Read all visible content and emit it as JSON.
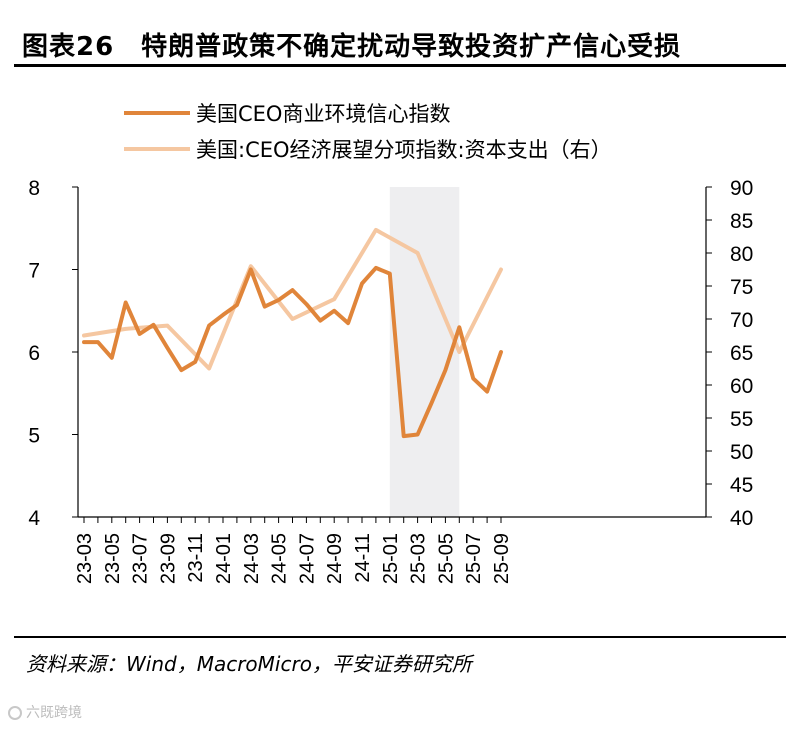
{
  "header": {
    "title": "图表26　特朗普政策不确定扰动导致投资扩产信心受损"
  },
  "footer": {
    "source": "资料来源：Wind，MacroMicro，平安证券研究所"
  },
  "watermark": {
    "text": "六既跨境",
    "icon": "ring-logo-icon"
  },
  "colors": {
    "series1": "#E0853A",
    "series2": "#F5C7A1",
    "shade": "#EEEEF0",
    "axis": "#000000"
  },
  "chart_data": {
    "type": "line",
    "title": "图表26　特朗普政策不确定扰动导致投资扩产信心受损",
    "xlabel": "",
    "ylabel": "",
    "ylim": [
      4,
      8
    ],
    "y2lim": [
      40,
      90
    ],
    "y_ticks": [
      "4",
      "5",
      "6",
      "7",
      "8"
    ],
    "y2_ticks": [
      "40",
      "45",
      "50",
      "55",
      "60",
      "65",
      "70",
      "75",
      "80",
      "85",
      "90"
    ],
    "categories": [
      "23-03",
      "23-05",
      "23-07",
      "23-09",
      "23-11",
      "24-01",
      "24-03",
      "24-05",
      "24-07",
      "24-09",
      "24-11",
      "25-01",
      "25-03",
      "25-05",
      "25-07",
      "25-09"
    ],
    "x_tick_labels": [
      "23-03",
      "23-05",
      "23-07",
      "23-09",
      "23-11",
      "24-01",
      "24-03",
      "24-05",
      "24-07",
      "24-09",
      "24-11",
      "25-01",
      "25-03",
      "25-05",
      "25-07",
      "25-09"
    ],
    "shaded_range": {
      "from": "25-01",
      "to": "25-06"
    },
    "series": [
      {
        "name": "美国CEO商业环境信心指数",
        "axis": "left",
        "x": [
          "23-03",
          "23-04",
          "23-05",
          "23-06",
          "23-07",
          "23-08",
          "23-09",
          "23-10",
          "23-11",
          "23-12",
          "24-01",
          "24-02",
          "24-03",
          "24-04",
          "24-05",
          "24-06",
          "24-07",
          "24-08",
          "24-09",
          "24-10",
          "24-11",
          "24-12",
          "25-01",
          "25-02",
          "25-03",
          "25-04",
          "25-05",
          "25-06",
          "25-07",
          "25-08",
          "25-09"
        ],
        "values": [
          6.12,
          6.12,
          5.93,
          6.6,
          6.22,
          6.33,
          6.05,
          5.78,
          5.88,
          6.32,
          6.45,
          6.57,
          7.0,
          6.55,
          6.63,
          6.75,
          6.58,
          6.38,
          6.5,
          6.35,
          6.83,
          7.02,
          6.95,
          4.98,
          5.0,
          5.38,
          5.78,
          6.3,
          5.68,
          5.52,
          6.0
        ]
      },
      {
        "name": "美国:CEO经济展望分项指数:资本支出（右）",
        "axis": "right",
        "x": [
          "23-03",
          "23-06",
          "23-09",
          "23-12",
          "24-03",
          "24-06",
          "24-09",
          "24-12",
          "25-03",
          "25-06",
          "25-09"
        ],
        "values": [
          67.5,
          68.5,
          69.0,
          62.5,
          78.0,
          70.0,
          73.0,
          83.5,
          80.0,
          65.0,
          77.5
        ]
      }
    ]
  }
}
